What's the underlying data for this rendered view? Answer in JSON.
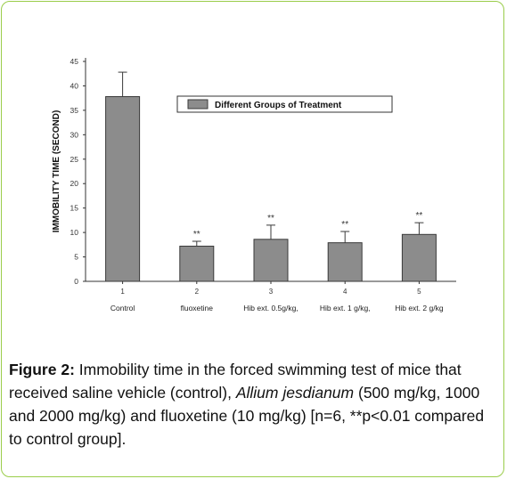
{
  "chart_data": {
    "type": "bar",
    "ylabel": "IMMOBILITY TIME (SECOND)",
    "xlabel": "",
    "ylim": [
      0,
      45
    ],
    "yticks": [
      0,
      5,
      10,
      15,
      20,
      25,
      30,
      35,
      40,
      45
    ],
    "grid": false,
    "legend_position": "top-right",
    "series": [
      {
        "name": "Different Groups of Treatment",
        "color": "#8c8c8c",
        "values": [
          37.8,
          7.2,
          8.6,
          7.9,
          9.6
        ],
        "errors": [
          5.0,
          1.0,
          2.9,
          2.3,
          2.4
        ],
        "annotations": [
          "",
          "**",
          "**",
          "**",
          "**"
        ]
      }
    ],
    "categories": [
      {
        "number": "1",
        "label": "Control"
      },
      {
        "number": "2",
        "label": "fluoxetine"
      },
      {
        "number": "3",
        "label": "Hib ext. 0.5g/kg,"
      },
      {
        "number": "4",
        "label": "Hib ext. 1 g/kg,"
      },
      {
        "number": "5",
        "label": "Hib ext. 2 g/kg"
      }
    ]
  },
  "caption": {
    "figure_label": "Figure 2:",
    "text_1": " Immobility time in the forced swimming test of mice that received saline vehicle (control), ",
    "italic_text": "Allium jesdianum",
    "text_2": " (500 mg/kg, 1000 and 2000 mg/kg) and fluoxetine (10 mg/kg) [n=6, **p<0.01 compared to control group]."
  }
}
